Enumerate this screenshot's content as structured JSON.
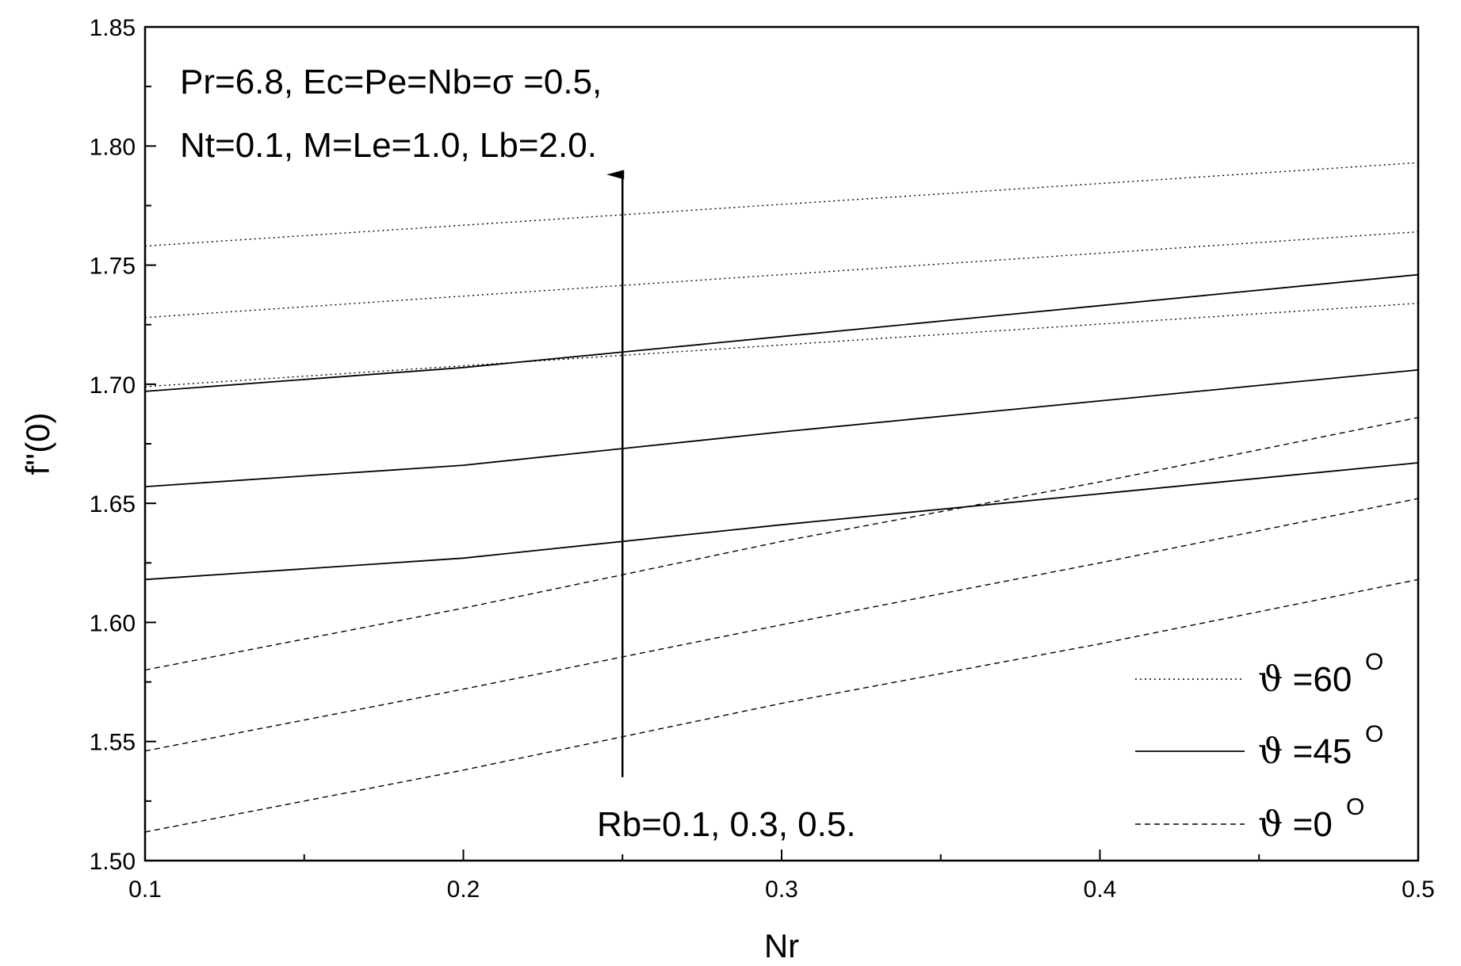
{
  "chart_data": {
    "type": "line",
    "xlabel": "Nr",
    "ylabel": "f''(0)",
    "xlim": [
      0.1,
      0.5
    ],
    "ylim": [
      1.5,
      1.85
    ],
    "x_ticks": [
      "0.1",
      "0.2",
      "0.3",
      "0.4",
      "0.5"
    ],
    "y_ticks": [
      "1.50",
      "1.55",
      "1.60",
      "1.65",
      "1.70",
      "1.75",
      "1.80",
      "1.85"
    ],
    "grid": false,
    "legend_position": "bottom-right",
    "annotations": {
      "params_line1": "Pr=6.8, Ec=Pe=Nb=σ =0.5,",
      "params_line2": "Nt=0.1, M=Le=1.0, Lb=2.0.",
      "rb_label": "Rb=0.1, 0.3, 0.5."
    },
    "legend": [
      {
        "style": "dotted",
        "symbol": "ϑ",
        "text": " =60",
        "sup": "O"
      },
      {
        "style": "solid",
        "symbol": "ϑ",
        "text": " =45",
        "sup": "O"
      },
      {
        "style": "dashed",
        "symbol": "ϑ",
        "text": " =0",
        "sup": "O"
      }
    ],
    "series": [
      {
        "group": "ϑ=60°",
        "style": "dotted",
        "rb": 0.1,
        "x": [
          0.1,
          0.5
        ],
        "y": [
          1.699,
          1.734
        ]
      },
      {
        "group": "ϑ=60°",
        "style": "dotted",
        "rb": 0.3,
        "x": [
          0.1,
          0.5
        ],
        "y": [
          1.728,
          1.764
        ]
      },
      {
        "group": "ϑ=60°",
        "style": "dotted",
        "rb": 0.5,
        "x": [
          0.1,
          0.5
        ],
        "y": [
          1.758,
          1.793
        ]
      },
      {
        "group": "ϑ=45°",
        "style": "solid",
        "rb": 0.1,
        "x": [
          0.1,
          0.2,
          0.3,
          0.4,
          0.5
        ],
        "y": [
          1.618,
          1.627,
          1.641,
          1.654,
          1.667
        ]
      },
      {
        "group": "ϑ=45°",
        "style": "solid",
        "rb": 0.3,
        "x": [
          0.1,
          0.2,
          0.3,
          0.4,
          0.5
        ],
        "y": [
          1.657,
          1.666,
          1.68,
          1.693,
          1.706
        ]
      },
      {
        "group": "ϑ=45°",
        "style": "solid",
        "rb": 0.5,
        "x": [
          0.1,
          0.2,
          0.3,
          0.4,
          0.5
        ],
        "y": [
          1.697,
          1.707,
          1.72,
          1.733,
          1.746
        ]
      },
      {
        "group": "ϑ=0°",
        "style": "dashed",
        "rb": 0.1,
        "x": [
          0.1,
          0.2,
          0.3,
          0.4,
          0.5
        ],
        "y": [
          1.512,
          1.538,
          1.566,
          1.591,
          1.618
        ]
      },
      {
        "group": "ϑ=0°",
        "style": "dashed",
        "rb": 0.3,
        "x": [
          0.1,
          0.2,
          0.3,
          0.4,
          0.5
        ],
        "y": [
          1.546,
          1.572,
          1.599,
          1.625,
          1.652
        ]
      },
      {
        "group": "ϑ=0°",
        "style": "dashed",
        "rb": 0.5,
        "x": [
          0.1,
          0.2,
          0.3,
          0.4,
          0.5
        ],
        "y": [
          1.58,
          1.606,
          1.634,
          1.659,
          1.686
        ]
      }
    ],
    "arrow": {
      "x": 0.25,
      "y_from": 1.535,
      "y_to": 1.788
    }
  }
}
